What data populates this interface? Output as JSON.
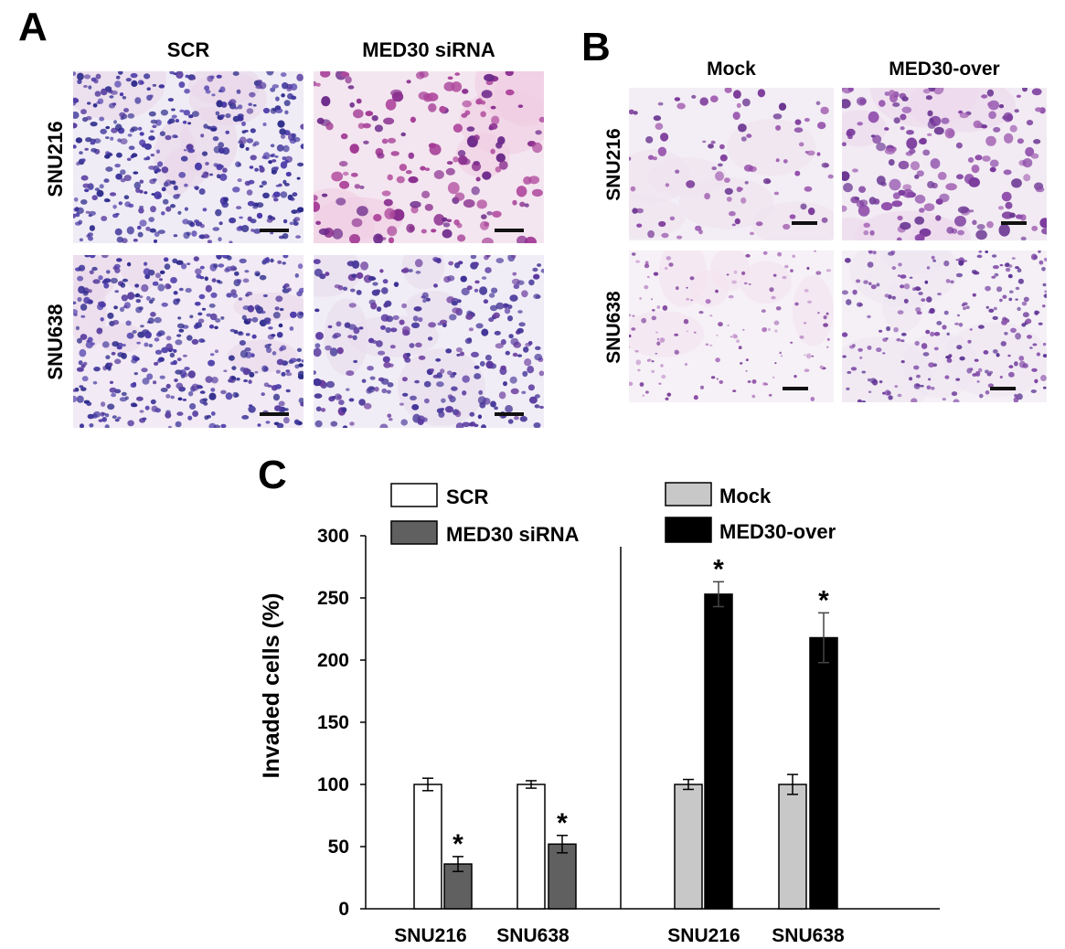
{
  "panel_a": {
    "letter": "A",
    "columns": [
      "SCR",
      "MED30 siRNA"
    ],
    "rows": [
      "SNU216",
      "SNU638"
    ]
  },
  "panel_b": {
    "letter": "B",
    "columns": [
      "Mock",
      "MED30-over"
    ],
    "rows": [
      "SNU216",
      "SNU638"
    ]
  },
  "panel_c": {
    "letter": "C",
    "colors": {
      "scr": "#ffffff",
      "sirna": "#606060",
      "mock": "#c8c8c8",
      "over": "#000000"
    }
  },
  "chart_data": {
    "type": "bar",
    "title": "",
    "ylabel": "Invaded cells (%)",
    "xlabel": "",
    "ylim": [
      0,
      300
    ],
    "yticks": [
      0,
      50,
      100,
      150,
      200,
      250,
      300
    ],
    "categories": [
      "SNU216",
      "SNU638",
      "SNU216",
      "SNU638"
    ],
    "series": [
      {
        "name": "SCR",
        "values": [
          100,
          100,
          null,
          null
        ],
        "errors": [
          5,
          3,
          null,
          null
        ],
        "significant": [
          false,
          false,
          false,
          false
        ]
      },
      {
        "name": "MED30 siRNA",
        "values": [
          36,
          52,
          null,
          null
        ],
        "errors": [
          6,
          7,
          null,
          null
        ],
        "significant": [
          true,
          true,
          false,
          false
        ]
      },
      {
        "name": "Mock",
        "values": [
          null,
          null,
          100,
          100
        ],
        "errors": [
          null,
          null,
          4,
          8
        ],
        "significant": [
          false,
          false,
          false,
          false
        ]
      },
      {
        "name": "MED30-over",
        "values": [
          null,
          null,
          253,
          218
        ],
        "errors": [
          null,
          null,
          10,
          20
        ],
        "significant": [
          false,
          false,
          true,
          true
        ]
      }
    ],
    "significance_marker": "*",
    "legend": [
      "SCR",
      "MED30 siRNA",
      "Mock",
      "MED30-over"
    ]
  }
}
